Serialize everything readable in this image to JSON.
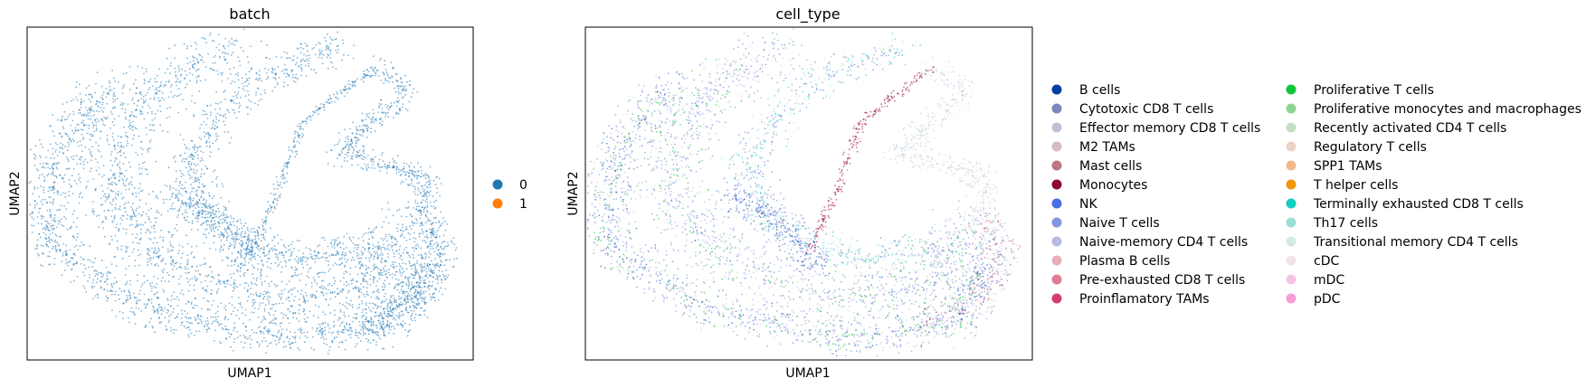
{
  "chart_data": [
    {
      "type": "scatter",
      "title": "batch",
      "xlabel": "UMAP1",
      "ylabel": "UMAP2",
      "grid": false,
      "ticks": false,
      "legend_position": "right",
      "legend": [
        {
          "label": "0",
          "color": "#1f77b4"
        },
        {
          "label": "1",
          "color": "#ff7f0e"
        }
      ]
    },
    {
      "type": "scatter",
      "title": "cell_type",
      "xlabel": "UMAP1",
      "ylabel": "UMAP2",
      "grid": false,
      "ticks": false,
      "legend_position": "right",
      "legend_columns": 2,
      "legend": [
        {
          "label": "B cells",
          "color": "#023fa5"
        },
        {
          "label": "Cytotoxic CD8 T cells",
          "color": "#7d87b9"
        },
        {
          "label": "Effector memory CD8 T cells",
          "color": "#bec1d4"
        },
        {
          "label": "M2 TAMs",
          "color": "#d6bcc0"
        },
        {
          "label": "Mast cells",
          "color": "#bb7784"
        },
        {
          "label": "Monocytes",
          "color": "#8e063b"
        },
        {
          "label": "NK",
          "color": "#4a6fe3"
        },
        {
          "label": "Naive T cells",
          "color": "#8595e1"
        },
        {
          "label": "Naive-memory CD4 T cells",
          "color": "#b5bbe3"
        },
        {
          "label": "Plasma B cells",
          "color": "#e6afb9"
        },
        {
          "label": "Pre-exhausted CD8 T cells",
          "color": "#e07b91"
        },
        {
          "label": "Proinflamatory TAMs",
          "color": "#d33f6a"
        },
        {
          "label": "Proliferative T cells",
          "color": "#11c638"
        },
        {
          "label": "Proliferative monocytes and macrophages",
          "color": "#8dd593"
        },
        {
          "label": "Recently activated CD4 T cells",
          "color": "#c6dec7"
        },
        {
          "label": "Regulatory T cells",
          "color": "#ead3c6"
        },
        {
          "label": "SPP1 TAMs",
          "color": "#f0b98d"
        },
        {
          "label": "T helper cells",
          "color": "#ef9708"
        },
        {
          "label": "Terminally exhausted CD8 T cells",
          "color": "#0fcfc0"
        },
        {
          "label": "Th17 cells",
          "color": "#9cded6"
        },
        {
          "label": "Transitional memory CD4 T cells",
          "color": "#d5eae7"
        },
        {
          "label": "cDC",
          "color": "#f3e1eb"
        },
        {
          "label": "mDC",
          "color": "#f6c4e1"
        },
        {
          "label": "pDC",
          "color": "#f79cd4"
        }
      ]
    }
  ]
}
